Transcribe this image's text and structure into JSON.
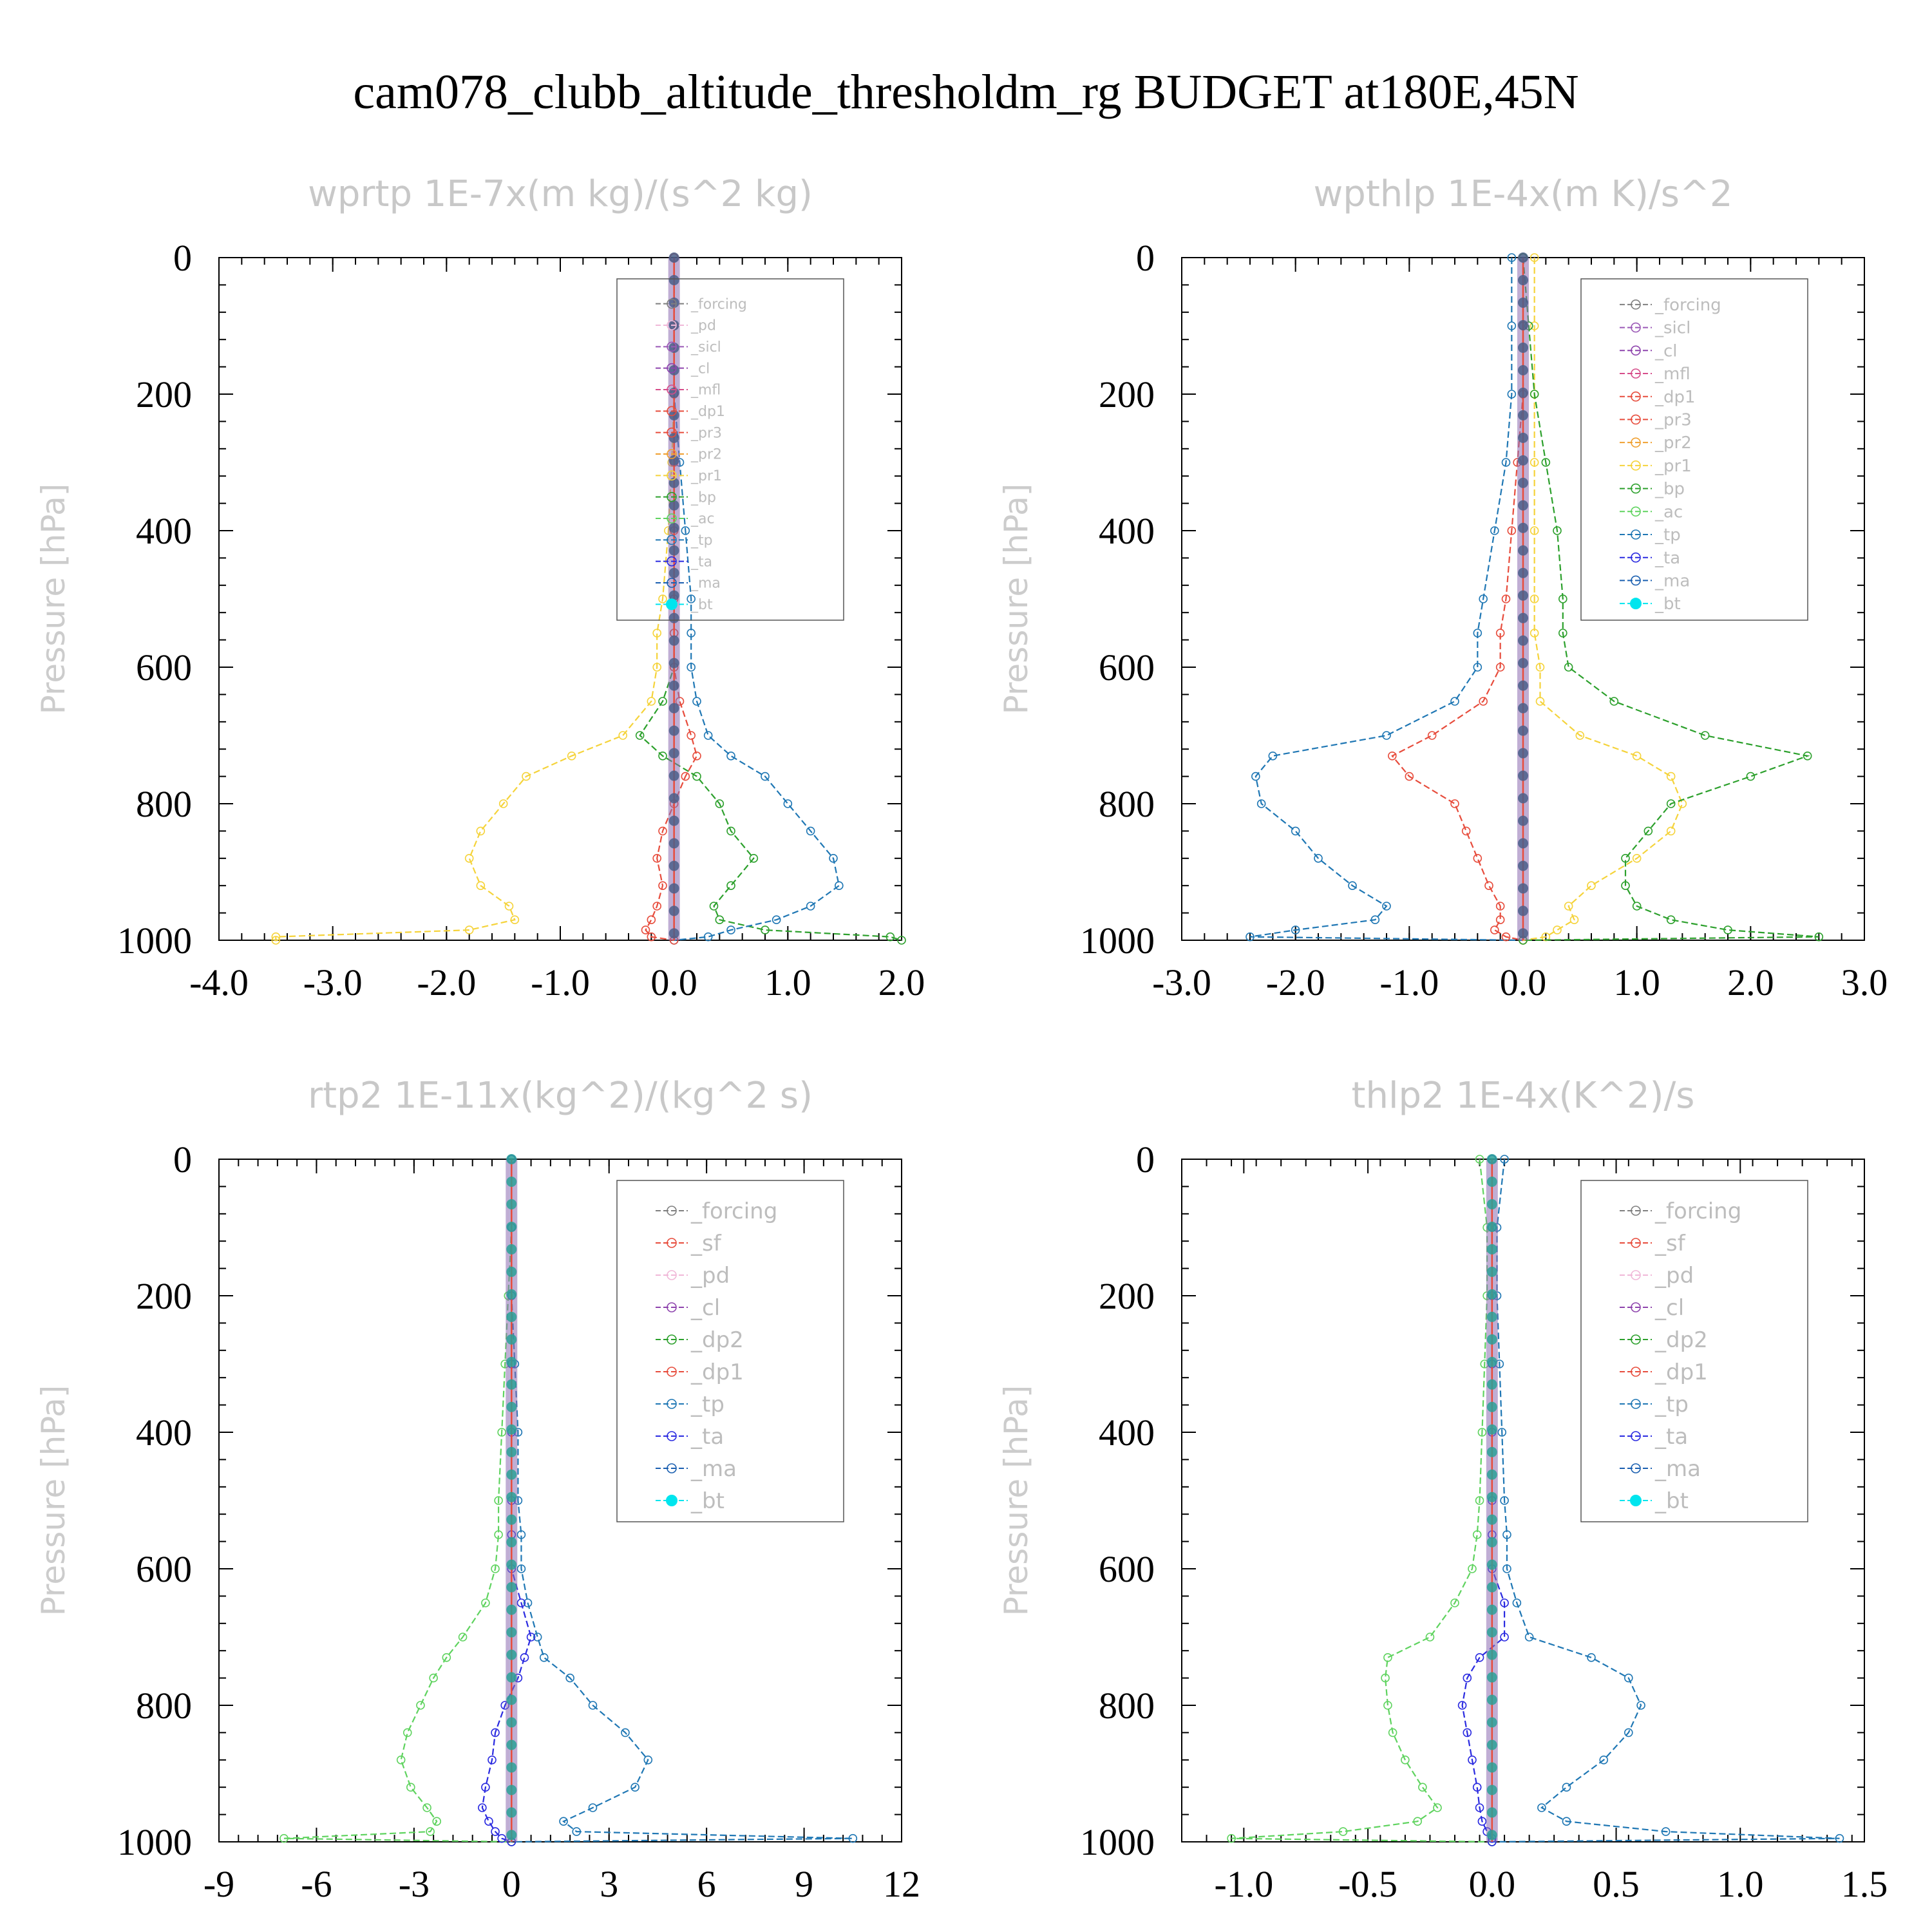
{
  "figure": {
    "title": "cam078_clubb_altitude_thresholdm_rg  BUDGET at180E,45N"
  },
  "colors": {
    "forcing": "#7f7f7f",
    "pd": "#f0b8d8",
    "sicl": "#9b59b6",
    "cl": "#8e44ad",
    "mfl": "#d64d8a",
    "dp1": "#e74c3c",
    "pr3": "#e74c3c",
    "pr2": "#f0a030",
    "pr1": "#f5d33a",
    "bp": "#2ca02c",
    "ac": "#5fd35f",
    "tp": "#1f77b4",
    "ta": "#2a2ae0",
    "ma": "#1a5fb0",
    "bt": "#00e5ee",
    "sf": "#e74c3c",
    "dp2": "#2ca02c"
  },
  "chart_data": [
    {
      "type": "line",
      "title": "wprtp  1E-7x(m kg)/(s^2 kg)",
      "ylabel": "Pressure [hPa]",
      "xlim": [
        -4.0,
        2.0
      ],
      "ylim": [
        1000,
        0
      ],
      "xticks": [
        "-4.0",
        "-3.0",
        "-2.0",
        "-1.0",
        "0.0",
        "1.0",
        "2.0"
      ],
      "yticks": [
        "0",
        "200",
        "400",
        "600",
        "800",
        "1000"
      ],
      "legend": {
        "location": "upper right",
        "entries": [
          "_forcing",
          "_pd",
          "_sicl",
          "_cl",
          "_mfl",
          "_dp1",
          "_pr3",
          "_pr2",
          "_pr1",
          "_bp",
          "_ac",
          "_tp",
          "_ta",
          "_ma",
          "_bt"
        ]
      },
      "pressure": [
        0,
        100,
        200,
        300,
        400,
        500,
        550,
        600,
        650,
        700,
        730,
        760,
        800,
        840,
        880,
        920,
        950,
        970,
        985,
        995,
        1000
      ],
      "series": [
        {
          "key": "pr1",
          "values": [
            0,
            0,
            0,
            -0.02,
            -0.05,
            -0.1,
            -0.15,
            -0.15,
            -0.2,
            -0.45,
            -0.9,
            -1.3,
            -1.5,
            -1.7,
            -1.8,
            -1.7,
            -1.45,
            -1.4,
            -1.8,
            -3.5,
            -3.5
          ]
        },
        {
          "key": "bp",
          "values": [
            0,
            0,
            0,
            0,
            0,
            0,
            0,
            0,
            -0.1,
            -0.3,
            -0.1,
            0.2,
            0.4,
            0.5,
            0.7,
            0.5,
            0.35,
            0.4,
            0.8,
            1.9,
            2.0
          ]
        },
        {
          "key": "tp",
          "values": [
            0,
            0,
            0,
            0.05,
            0.1,
            0.15,
            0.15,
            0.15,
            0.2,
            0.3,
            0.5,
            0.8,
            1.0,
            1.2,
            1.4,
            1.45,
            1.2,
            0.9,
            0.5,
            0.3,
            0
          ]
        },
        {
          "key": "pr3",
          "values": [
            0,
            0,
            0,
            0,
            0,
            0,
            0,
            0,
            0.05,
            0.15,
            0.2,
            0.1,
            0,
            -0.1,
            -0.15,
            -0.1,
            -0.15,
            -0.2,
            -0.25,
            -0.2,
            0
          ]
        },
        {
          "key": "forcing",
          "markers": "dense",
          "values": [
            0,
            0,
            0,
            0,
            0,
            0,
            0,
            0,
            0,
            0,
            0,
            0,
            0,
            0,
            0,
            0,
            0,
            0,
            0,
            0,
            0
          ]
        }
      ]
    },
    {
      "type": "line",
      "title": "wpthlp  1E-4x(m K)/s^2",
      "ylabel": "Pressure [hPa]",
      "xlim": [
        -3.0,
        3.0
      ],
      "ylim": [
        1000,
        0
      ],
      "xticks": [
        "-3.0",
        "-2.0",
        "-1.0",
        "0.0",
        "1.0",
        "2.0",
        "3.0"
      ],
      "yticks": [
        "0",
        "200",
        "400",
        "600",
        "800",
        "1000"
      ],
      "legend": {
        "location": "upper right",
        "entries": [
          "_forcing",
          "_sicl",
          "_cl",
          "_mfl",
          "_dp1",
          "_pr3",
          "_pr2",
          "_pr1",
          "_bp",
          "_ac",
          "_tp",
          "_ta",
          "_ma",
          "_bt"
        ]
      },
      "pressure": [
        0,
        100,
        200,
        300,
        400,
        500,
        550,
        600,
        650,
        700,
        730,
        760,
        800,
        840,
        880,
        920,
        950,
        970,
        985,
        995,
        1000
      ],
      "series": [
        {
          "key": "tp",
          "values": [
            -0.1,
            -0.1,
            -0.1,
            -0.15,
            -0.25,
            -0.35,
            -0.4,
            -0.4,
            -0.6,
            -1.2,
            -2.2,
            -2.35,
            -2.3,
            -2.0,
            -1.8,
            -1.5,
            -1.2,
            -1.3,
            -2.0,
            -2.4,
            0
          ]
        },
        {
          "key": "pr3",
          "values": [
            0,
            0,
            0,
            -0.05,
            -0.1,
            -0.15,
            -0.2,
            -0.2,
            -0.35,
            -0.8,
            -1.15,
            -1.0,
            -0.6,
            -0.5,
            -0.4,
            -0.3,
            -0.2,
            -0.2,
            -0.25,
            -0.15,
            0
          ]
        },
        {
          "key": "pr1",
          "values": [
            0.1,
            0.1,
            0.1,
            0.1,
            0.1,
            0.1,
            0.1,
            0.15,
            0.15,
            0.5,
            1.0,
            1.3,
            1.4,
            1.3,
            1.0,
            0.6,
            0.4,
            0.45,
            0.3,
            0.2,
            0
          ]
        },
        {
          "key": "bp",
          "values": [
            0,
            0.05,
            0.1,
            0.2,
            0.3,
            0.35,
            0.35,
            0.4,
            0.8,
            1.6,
            2.5,
            2.0,
            1.3,
            1.1,
            0.9,
            0.9,
            1.0,
            1.3,
            1.8,
            2.6,
            0
          ]
        },
        {
          "key": "forcing",
          "markers": "dense",
          "values": [
            0,
            0,
            0,
            0,
            0,
            0,
            0,
            0,
            0,
            0,
            0,
            0,
            0,
            0,
            0,
            0,
            0,
            0,
            0,
            0,
            0
          ]
        }
      ]
    },
    {
      "type": "line",
      "title": "rtp2  1E-11x(kg^2)/(kg^2 s)",
      "ylabel": "Pressure [hPa]",
      "xlim": [
        -9,
        12
      ],
      "ylim": [
        1000,
        0
      ],
      "xticks": [
        "-9",
        "-6",
        "-3",
        "0",
        "3",
        "6",
        "9",
        "12"
      ],
      "yticks": [
        "0",
        "200",
        "400",
        "600",
        "800",
        "1000"
      ],
      "legend": {
        "location": "upper right",
        "entries": [
          "_forcing",
          "_sf",
          "_pd",
          "_cl",
          "_dp2",
          "_dp1",
          "_tp",
          "_ta",
          "_ma",
          "_bt"
        ]
      },
      "pressure": [
        0,
        100,
        200,
        300,
        400,
        500,
        550,
        600,
        650,
        700,
        730,
        760,
        800,
        840,
        880,
        920,
        950,
        970,
        985,
        995,
        1000
      ],
      "series": [
        {
          "key": "ac",
          "values": [
            0,
            0,
            -0.1,
            -0.2,
            -0.3,
            -0.4,
            -0.4,
            -0.5,
            -0.8,
            -1.5,
            -2.0,
            -2.4,
            -2.8,
            -3.2,
            -3.4,
            -3.1,
            -2.6,
            -2.3,
            -2.5,
            -7.0,
            0
          ]
        },
        {
          "key": "tp",
          "values": [
            0,
            0,
            0,
            0.1,
            0.2,
            0.2,
            0.3,
            0.3,
            0.5,
            0.8,
            1.0,
            1.8,
            2.5,
            3.5,
            4.2,
            3.8,
            2.5,
            1.6,
            2.0,
            10.5,
            0
          ]
        },
        {
          "key": "ta",
          "values": [
            0,
            0,
            0,
            0,
            0,
            0,
            0,
            0,
            0.3,
            0.6,
            0.4,
            0.2,
            -0.2,
            -0.5,
            -0.6,
            -0.8,
            -0.9,
            -0.7,
            -0.5,
            -0.3,
            0
          ]
        },
        {
          "key": "forcing",
          "markers": "dense",
          "values": [
            0,
            0,
            0,
            0,
            0,
            0,
            0,
            0,
            0,
            0,
            0,
            0,
            0,
            0,
            0,
            0,
            0,
            0,
            0,
            0,
            0
          ]
        }
      ]
    },
    {
      "type": "line",
      "title": "thlp2  1E-4x(K^2)/s",
      "ylabel": "Pressure [hPa]",
      "xlim": [
        -1.25,
        1.5
      ],
      "ylim": [
        1000,
        0
      ],
      "xticks": [
        "-1.0",
        "-0.5",
        "0.0",
        "0.5",
        "1.0",
        "1.5"
      ],
      "xtick_values": [
        -1.0,
        -0.5,
        0.0,
        0.5,
        1.0,
        1.5
      ],
      "yticks": [
        "0",
        "200",
        "400",
        "600",
        "800",
        "1000"
      ],
      "legend": {
        "location": "upper right",
        "entries": [
          "_forcing",
          "_sf",
          "_pd",
          "_cl",
          "_dp2",
          "_dp1",
          "_tp",
          "_ta",
          "_ma",
          "_bt"
        ]
      },
      "pressure": [
        0,
        100,
        200,
        300,
        400,
        500,
        550,
        600,
        650,
        700,
        730,
        760,
        800,
        840,
        880,
        920,
        950,
        970,
        985,
        995,
        1000
      ],
      "series": [
        {
          "key": "ac",
          "values": [
            -0.05,
            -0.02,
            -0.02,
            -0.03,
            -0.04,
            -0.05,
            -0.06,
            -0.08,
            -0.15,
            -0.25,
            -0.42,
            -0.43,
            -0.42,
            -0.4,
            -0.35,
            -0.28,
            -0.22,
            -0.3,
            -0.6,
            -1.05,
            0
          ]
        },
        {
          "key": "tp",
          "values": [
            0.05,
            0.02,
            0.02,
            0.03,
            0.04,
            0.05,
            0.06,
            0.06,
            0.1,
            0.15,
            0.4,
            0.55,
            0.6,
            0.55,
            0.45,
            0.3,
            0.2,
            0.3,
            0.7,
            1.4,
            0
          ]
        },
        {
          "key": "ta",
          "values": [
            0,
            0,
            0,
            0,
            0,
            0,
            0,
            0,
            0.05,
            0.05,
            -0.05,
            -0.1,
            -0.12,
            -0.1,
            -0.08,
            -0.06,
            -0.05,
            -0.04,
            -0.02,
            0,
            0
          ]
        },
        {
          "key": "forcing",
          "markers": "dense",
          "values": [
            0,
            0,
            0,
            0,
            0,
            0,
            0,
            0,
            0,
            0,
            0,
            0,
            0,
            0,
            0,
            0,
            0,
            0,
            0,
            0,
            0
          ]
        }
      ]
    }
  ]
}
